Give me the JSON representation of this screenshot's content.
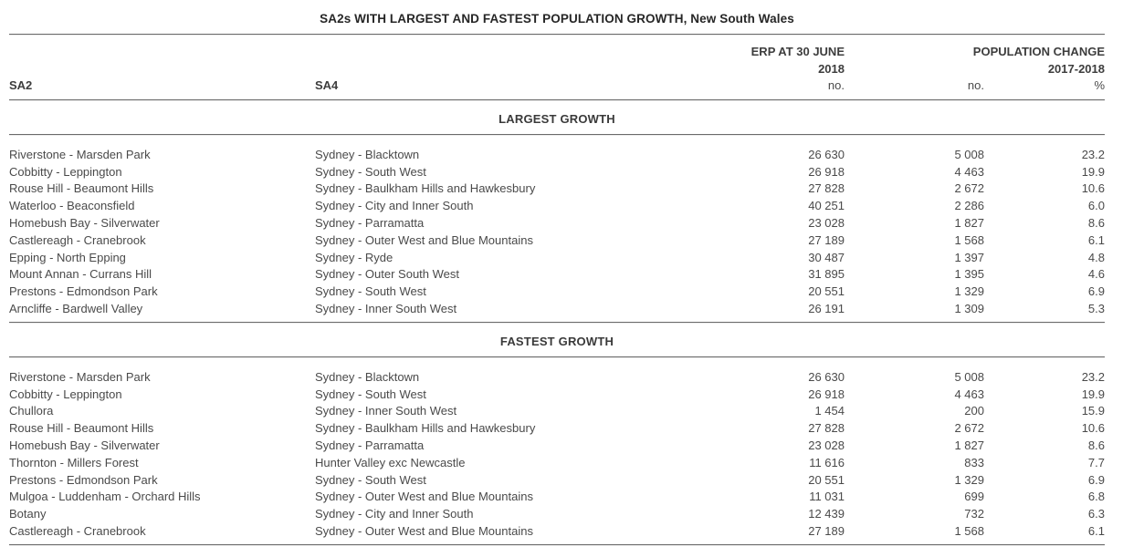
{
  "title": "SA2s WITH LARGEST AND FASTEST POPULATION GROWTH, New South Wales",
  "columns": {
    "sa2": "SA2",
    "sa4": "SA4",
    "erp_line1": "ERP AT 30 JUNE",
    "erp_line2": "2018",
    "erp_unit": "no.",
    "change_line1": "POPULATION CHANGE",
    "change_line2": "2017-2018",
    "change_no_unit": "no.",
    "change_pct_unit": "%"
  },
  "sections": [
    {
      "label": "LARGEST GROWTH",
      "rows": [
        {
          "sa2": "Riverstone - Marsden Park",
          "sa4": "Sydney - Blacktown",
          "erp": "26 630",
          "change_no": "5 008",
          "change_pct": "23.2"
        },
        {
          "sa2": "Cobbitty - Leppington",
          "sa4": "Sydney - South West",
          "erp": "26 918",
          "change_no": "4 463",
          "change_pct": "19.9"
        },
        {
          "sa2": "Rouse Hill - Beaumont Hills",
          "sa4": "Sydney - Baulkham Hills and Hawkesbury",
          "erp": "27 828",
          "change_no": "2 672",
          "change_pct": "10.6"
        },
        {
          "sa2": "Waterloo - Beaconsfield",
          "sa4": "Sydney - City and Inner South",
          "erp": "40 251",
          "change_no": "2 286",
          "change_pct": "6.0"
        },
        {
          "sa2": "Homebush Bay - Silverwater",
          "sa4": "Sydney - Parramatta",
          "erp": "23 028",
          "change_no": "1 827",
          "change_pct": "8.6"
        },
        {
          "sa2": "Castlereagh - Cranebrook",
          "sa4": "Sydney - Outer West and Blue Mountains",
          "erp": "27 189",
          "change_no": "1 568",
          "change_pct": "6.1"
        },
        {
          "sa2": "Epping - North Epping",
          "sa4": "Sydney - Ryde",
          "erp": "30 487",
          "change_no": "1 397",
          "change_pct": "4.8"
        },
        {
          "sa2": "Mount Annan - Currans Hill",
          "sa4": "Sydney - Outer South West",
          "erp": "31 895",
          "change_no": "1 395",
          "change_pct": "4.6"
        },
        {
          "sa2": "Prestons - Edmondson Park",
          "sa4": "Sydney - South West",
          "erp": "20 551",
          "change_no": "1 329",
          "change_pct": "6.9"
        },
        {
          "sa2": "Arncliffe - Bardwell Valley",
          "sa4": "Sydney - Inner South West",
          "erp": "26 191",
          "change_no": "1 309",
          "change_pct": "5.3"
        }
      ]
    },
    {
      "label": "FASTEST GROWTH",
      "rows": [
        {
          "sa2": "Riverstone - Marsden Park",
          "sa4": "Sydney - Blacktown",
          "erp": "26 630",
          "change_no": "5 008",
          "change_pct": "23.2"
        },
        {
          "sa2": "Cobbitty - Leppington",
          "sa4": "Sydney - South West",
          "erp": "26 918",
          "change_no": "4 463",
          "change_pct": "19.9"
        },
        {
          "sa2": "Chullora",
          "sa4": "Sydney - Inner South West",
          "erp": "1 454",
          "change_no": "200",
          "change_pct": "15.9"
        },
        {
          "sa2": "Rouse Hill - Beaumont Hills",
          "sa4": "Sydney - Baulkham Hills and Hawkesbury",
          "erp": "27 828",
          "change_no": "2 672",
          "change_pct": "10.6"
        },
        {
          "sa2": "Homebush Bay - Silverwater",
          "sa4": "Sydney - Parramatta",
          "erp": "23 028",
          "change_no": "1 827",
          "change_pct": "8.6"
        },
        {
          "sa2": "Thornton - Millers Forest",
          "sa4": "Hunter Valley exc Newcastle",
          "erp": "11 616",
          "change_no": "833",
          "change_pct": "7.7"
        },
        {
          "sa2": "Prestons - Edmondson Park",
          "sa4": "Sydney - South West",
          "erp": "20 551",
          "change_no": "1 329",
          "change_pct": "6.9"
        },
        {
          "sa2": "Mulgoa - Luddenham - Orchard Hills",
          "sa4": "Sydney - Outer West and Blue Mountains",
          "erp": "11 031",
          "change_no": "699",
          "change_pct": "6.8"
        },
        {
          "sa2": "Botany",
          "sa4": "Sydney - City and Inner South",
          "erp": "12 439",
          "change_no": "732",
          "change_pct": "6.3"
        },
        {
          "sa2": "Castlereagh - Cranebrook",
          "sa4": "Sydney - Outer West and Blue Mountains",
          "erp": "27 189",
          "change_no": "1 568",
          "change_pct": "6.1"
        }
      ]
    }
  ],
  "colors": {
    "title_text": "#262626",
    "body_text": "#4a4a4a",
    "rule_dark": "#6b6b6b",
    "rule_light": "#ebebeb"
  }
}
